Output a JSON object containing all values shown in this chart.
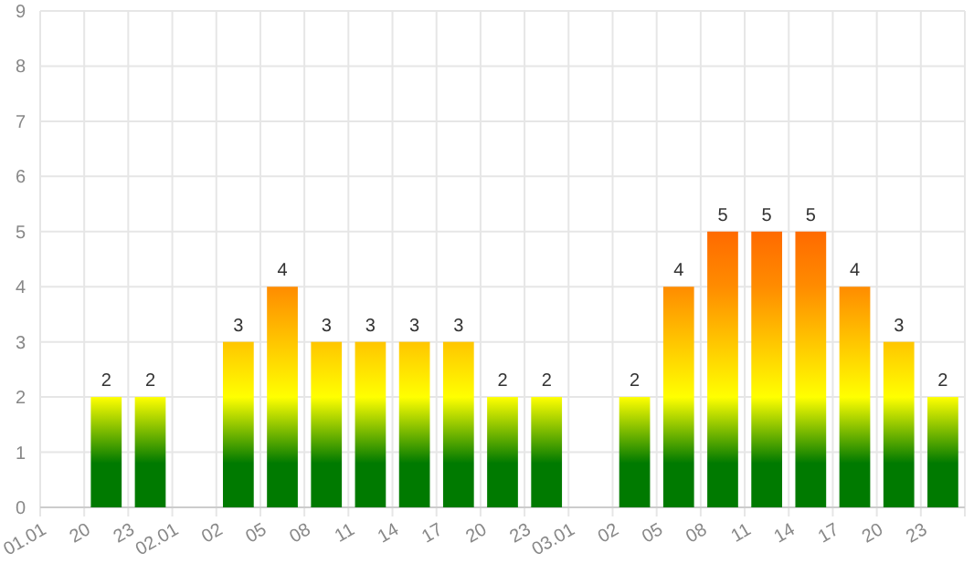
{
  "chart_data": {
    "type": "bar",
    "categories": [
      "01.01",
      "20",
      "23",
      "02.01",
      "02",
      "05",
      "08",
      "11",
      "14",
      "17",
      "20",
      "23",
      "03.01",
      "02",
      "05",
      "08",
      "11",
      "14",
      "17",
      "20",
      "23"
    ],
    "values": [
      null,
      2,
      2,
      null,
      3,
      4,
      3,
      3,
      3,
      3,
      2,
      2,
      null,
      2,
      4,
      5,
      5,
      5,
      4,
      3,
      2
    ],
    "color": "#ffff00",
    "ylim": [
      0,
      9
    ],
    "yticks": [
      0,
      1,
      2,
      3,
      4,
      5,
      6,
      7,
      8,
      9
    ],
    "grid": true,
    "data_labels": true
  }
}
